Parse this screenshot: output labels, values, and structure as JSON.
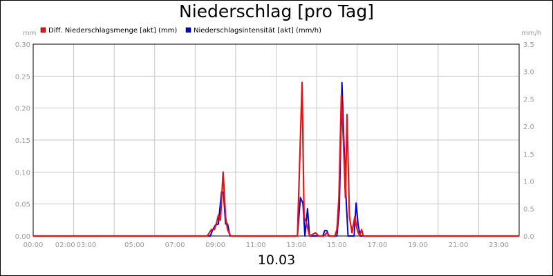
{
  "chart_data": {
    "type": "line",
    "title": "Niederschlag [pro Tag]",
    "date_label": "10.03",
    "y_left_unit": "mm",
    "y_right_unit": "mm/h",
    "ylim_left": [
      0,
      0.3
    ],
    "ylim_right": [
      0,
      3.5
    ],
    "y_left_ticks": [
      "0.00",
      "0.05",
      "0.10",
      "0.15",
      "0.20",
      "0.25",
      "0.30"
    ],
    "y_right_ticks": [
      "0.0",
      "0.5",
      "1.0",
      "1.5",
      "2.0",
      "2.5",
      "3.0",
      "3.5"
    ],
    "x_tick_labels": [
      "00:00",
      "02:00",
      "03:00",
      "05:00",
      "07:00",
      "09:00",
      "11:00",
      "13:00",
      "15:00",
      "17:00",
      "19:00",
      "21:00",
      "23:00"
    ],
    "x_tick_hours": [
      0,
      2,
      3,
      5,
      7,
      9,
      11,
      13,
      15,
      17,
      19,
      21,
      23
    ],
    "grid": true,
    "legend_placement": "top-left",
    "series": [
      {
        "name": "Diff. Niederschlagsmenge [akt] (mm)",
        "color": "#ee1111",
        "axis": "left",
        "points": [
          [
            0,
            0
          ],
          [
            8.6,
            0
          ],
          [
            8.8,
            0.01
          ],
          [
            8.95,
            0.01
          ],
          [
            9.05,
            0.02
          ],
          [
            9.15,
            0.033
          ],
          [
            9.25,
            0.025
          ],
          [
            9.38,
            0.1
          ],
          [
            9.5,
            0.03
          ],
          [
            9.6,
            0.01
          ],
          [
            9.75,
            0
          ],
          [
            13.05,
            0
          ],
          [
            13.28,
            0.24
          ],
          [
            13.38,
            0.03
          ],
          [
            13.5,
            0.02
          ],
          [
            13.65,
            0
          ],
          [
            13.95,
            0.005
          ],
          [
            14.1,
            0
          ],
          [
            14.35,
            0
          ],
          [
            14.5,
            0.005
          ],
          [
            14.65,
            0
          ],
          [
            14.9,
            0
          ],
          [
            15.0,
            0.01
          ],
          [
            15.1,
            0.06
          ],
          [
            15.22,
            0.22
          ],
          [
            15.32,
            0.15
          ],
          [
            15.42,
            0.06
          ],
          [
            15.5,
            0.19
          ],
          [
            15.62,
            0.03
          ],
          [
            15.75,
            0.005
          ],
          [
            15.88,
            0.03
          ],
          [
            16.0,
            0.01
          ],
          [
            16.12,
            0
          ],
          [
            16.22,
            0.01
          ],
          [
            16.3,
            0
          ],
          [
            24,
            0
          ]
        ]
      },
      {
        "name": "Niederschlagsintensität [akt] (mm/h)",
        "color": "#0000dd",
        "axis": "right",
        "points": [
          [
            0,
            0
          ],
          [
            8.75,
            0
          ],
          [
            8.85,
            0.1
          ],
          [
            9.0,
            0.2
          ],
          [
            9.15,
            0.22
          ],
          [
            9.3,
            0.8
          ],
          [
            9.4,
            0.8
          ],
          [
            9.5,
            0.22
          ],
          [
            9.6,
            0.22
          ],
          [
            9.72,
            0
          ],
          [
            13.05,
            0
          ],
          [
            13.2,
            0.7
          ],
          [
            13.32,
            0.6
          ],
          [
            13.42,
            0
          ],
          [
            13.55,
            0.5
          ],
          [
            13.65,
            0
          ],
          [
            14.3,
            0
          ],
          [
            14.4,
            0.1
          ],
          [
            14.5,
            0.1
          ],
          [
            14.6,
            0
          ],
          [
            15.0,
            0
          ],
          [
            15.12,
            0.5
          ],
          [
            15.25,
            2.8
          ],
          [
            15.35,
            1.7
          ],
          [
            15.45,
            0.7
          ],
          [
            15.55,
            0
          ],
          [
            15.85,
            0
          ],
          [
            15.95,
            0.6
          ],
          [
            16.05,
            0.2
          ],
          [
            16.15,
            0
          ],
          [
            24,
            0
          ]
        ]
      }
    ]
  }
}
